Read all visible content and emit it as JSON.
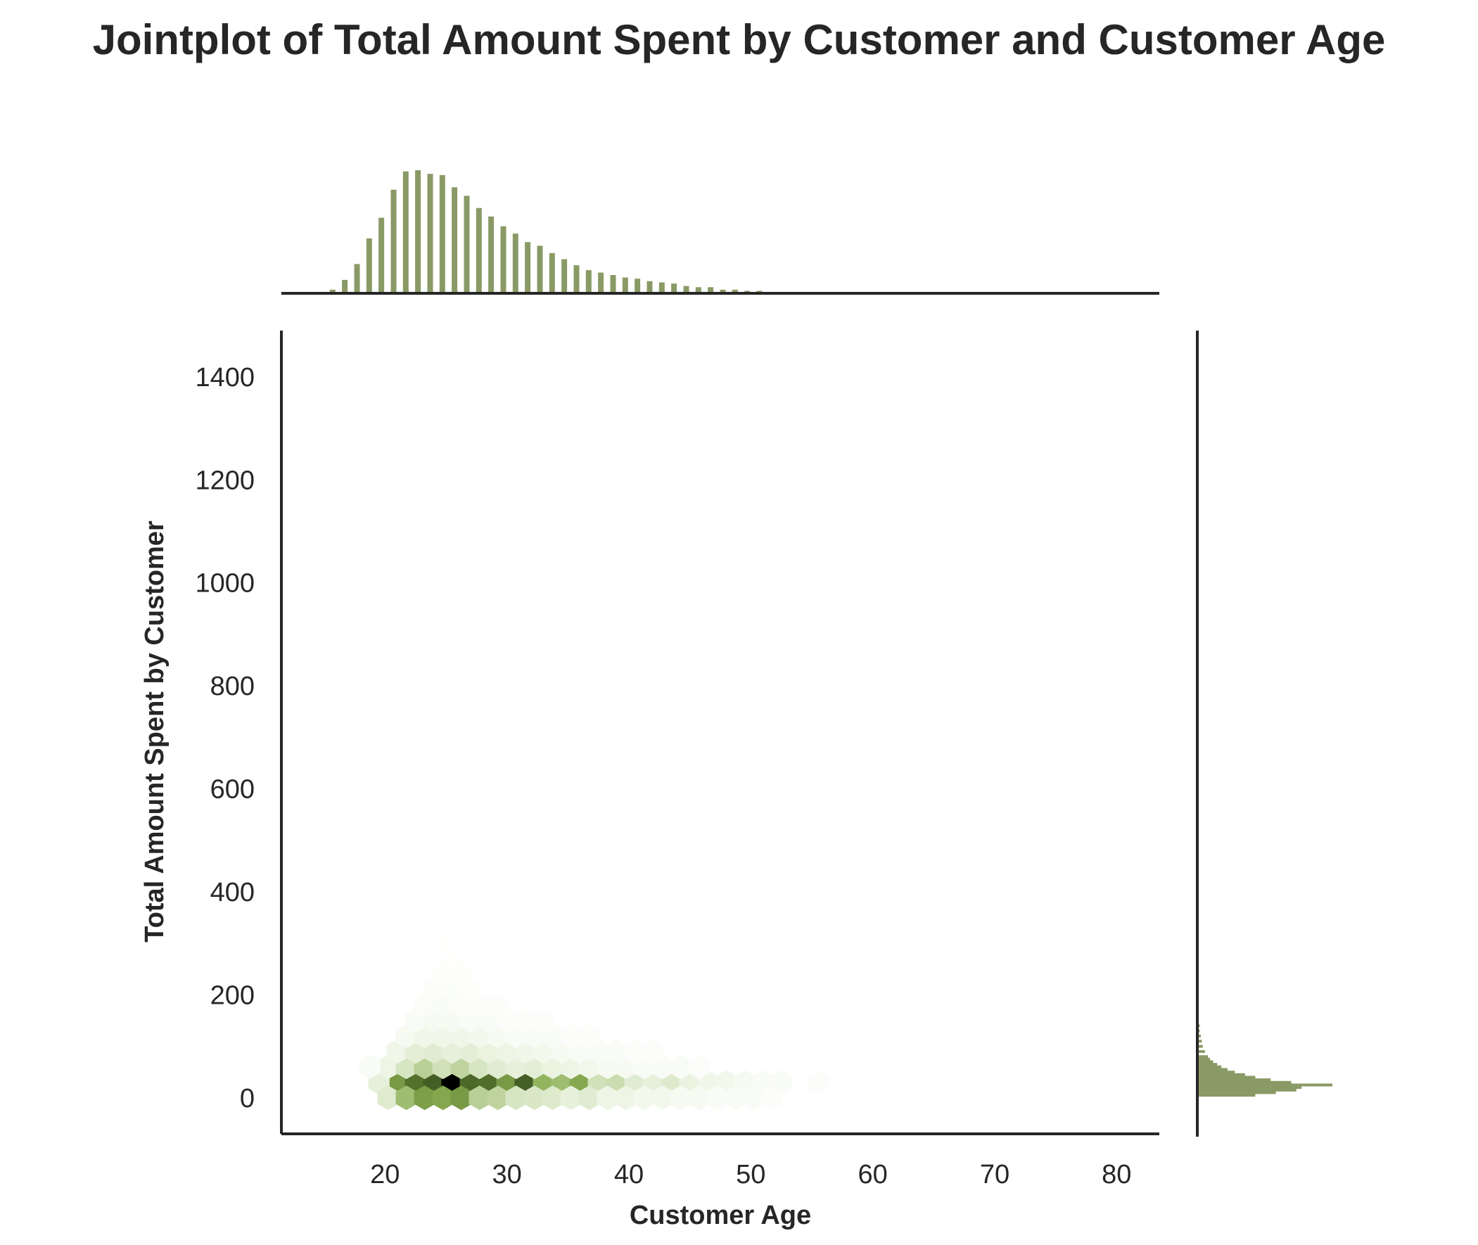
{
  "chart_data": {
    "type": "hexbin-jointplot",
    "title": "Jointplot of Total Amount Spent by Customer and Customer Age",
    "xlabel": "Customer Age",
    "ylabel": "Total Amount Spent by Customer",
    "xlim": [
      11.5,
      83.5
    ],
    "ylim": [
      -70,
      1490
    ],
    "xticks": [
      20,
      30,
      40,
      50,
      60,
      70,
      80
    ],
    "yticks": [
      0,
      200,
      400,
      600,
      800,
      1000,
      1200,
      1400
    ],
    "grid": false,
    "colors": {
      "bar": "#8a9a66",
      "hex_light": "#f4f8ee",
      "hex_mid": "#8aad52",
      "hex_dark": "#4a6624",
      "hex_max": "#000000",
      "axis": "#262626"
    },
    "hexbin_cells": [
      {
        "x": 21,
        "y": 30,
        "density": 0.55
      },
      {
        "x": 22.5,
        "y": 30,
        "density": 0.75
      },
      {
        "x": 24,
        "y": 30,
        "density": 0.82
      },
      {
        "x": 25.5,
        "y": 30,
        "density": 1.0
      },
      {
        "x": 27,
        "y": 30,
        "density": 0.78
      },
      {
        "x": 28.5,
        "y": 30,
        "density": 0.76
      },
      {
        "x": 30,
        "y": 30,
        "density": 0.55
      },
      {
        "x": 31.5,
        "y": 30,
        "density": 0.82
      },
      {
        "x": 33,
        "y": 30,
        "density": 0.42
      },
      {
        "x": 34.5,
        "y": 30,
        "density": 0.38
      },
      {
        "x": 36,
        "y": 30,
        "density": 0.48
      },
      {
        "x": 37.5,
        "y": 30,
        "density": 0.22
      },
      {
        "x": 39,
        "y": 30,
        "density": 0.24
      },
      {
        "x": 40.5,
        "y": 30,
        "density": 0.14
      },
      {
        "x": 42,
        "y": 30,
        "density": 0.1
      },
      {
        "x": 43.5,
        "y": 30,
        "density": 0.16
      },
      {
        "x": 45,
        "y": 30,
        "density": 0.08
      },
      {
        "x": 46.5,
        "y": 30,
        "density": 0.05
      },
      {
        "x": 48,
        "y": 30,
        "density": 0.04
      },
      {
        "x": 49.5,
        "y": 30,
        "density": 0.03
      },
      {
        "x": 51,
        "y": 30,
        "density": 0.02
      },
      {
        "x": 52.5,
        "y": 30,
        "density": 0.02
      },
      {
        "x": 55.5,
        "y": 30,
        "density": 0.01
      },
      {
        "x": 19.5,
        "y": 30,
        "density": 0.1
      },
      {
        "x": 20.25,
        "y": 0,
        "density": 0.15
      },
      {
        "x": 21.75,
        "y": 0,
        "density": 0.38
      },
      {
        "x": 23.25,
        "y": 0,
        "density": 0.52
      },
      {
        "x": 24.75,
        "y": 0,
        "density": 0.48
      },
      {
        "x": 26.25,
        "y": 0,
        "density": 0.55
      },
      {
        "x": 27.75,
        "y": 0,
        "density": 0.3
      },
      {
        "x": 29.25,
        "y": 0,
        "density": 0.28
      },
      {
        "x": 30.75,
        "y": 0,
        "density": 0.2
      },
      {
        "x": 32.25,
        "y": 0,
        "density": 0.18
      },
      {
        "x": 33.75,
        "y": 0,
        "density": 0.16
      },
      {
        "x": 35.25,
        "y": 0,
        "density": 0.1
      },
      {
        "x": 36.75,
        "y": 0,
        "density": 0.14
      },
      {
        "x": 38.25,
        "y": 0,
        "density": 0.06
      },
      {
        "x": 39.75,
        "y": 0,
        "density": 0.06
      },
      {
        "x": 41.25,
        "y": 0,
        "density": 0.04
      },
      {
        "x": 42.75,
        "y": 0,
        "density": 0.04
      },
      {
        "x": 44.25,
        "y": 0,
        "density": 0.03
      },
      {
        "x": 45.75,
        "y": 0,
        "density": 0.03
      },
      {
        "x": 47.25,
        "y": 0,
        "density": 0.02
      },
      {
        "x": 48.75,
        "y": 0,
        "density": 0.02
      },
      {
        "x": 50.25,
        "y": 0,
        "density": 0.02
      },
      {
        "x": 51.75,
        "y": 0,
        "density": 0.01
      },
      {
        "x": 20.25,
        "y": 60,
        "density": 0.06
      },
      {
        "x": 21.75,
        "y": 60,
        "density": 0.2
      },
      {
        "x": 23.25,
        "y": 60,
        "density": 0.3
      },
      {
        "x": 24.75,
        "y": 60,
        "density": 0.22
      },
      {
        "x": 26.25,
        "y": 60,
        "density": 0.28
      },
      {
        "x": 27.75,
        "y": 60,
        "density": 0.2
      },
      {
        "x": 29.25,
        "y": 60,
        "density": 0.14
      },
      {
        "x": 30.75,
        "y": 60,
        "density": 0.1
      },
      {
        "x": 32.25,
        "y": 60,
        "density": 0.12
      },
      {
        "x": 33.75,
        "y": 60,
        "density": 0.08
      },
      {
        "x": 35.25,
        "y": 60,
        "density": 0.06
      },
      {
        "x": 36.75,
        "y": 60,
        "density": 0.04
      },
      {
        "x": 38.25,
        "y": 60,
        "density": 0.03
      },
      {
        "x": 39.75,
        "y": 60,
        "density": 0.03
      },
      {
        "x": 41.25,
        "y": 60,
        "density": 0.02
      },
      {
        "x": 42.75,
        "y": 60,
        "density": 0.02
      },
      {
        "x": 44.25,
        "y": 60,
        "density": 0.02
      },
      {
        "x": 45.75,
        "y": 60,
        "density": 0.01
      },
      {
        "x": 18.75,
        "y": 60,
        "density": 0.02
      },
      {
        "x": 21,
        "y": 90,
        "density": 0.05
      },
      {
        "x": 22.5,
        "y": 90,
        "density": 0.12
      },
      {
        "x": 24,
        "y": 90,
        "density": 0.14
      },
      {
        "x": 25.5,
        "y": 90,
        "density": 0.1
      },
      {
        "x": 27,
        "y": 90,
        "density": 0.12
      },
      {
        "x": 28.5,
        "y": 90,
        "density": 0.08
      },
      {
        "x": 30,
        "y": 90,
        "density": 0.06
      },
      {
        "x": 31.5,
        "y": 90,
        "density": 0.05
      },
      {
        "x": 33,
        "y": 90,
        "density": 0.04
      },
      {
        "x": 34.5,
        "y": 90,
        "density": 0.03
      },
      {
        "x": 36,
        "y": 90,
        "density": 0.02
      },
      {
        "x": 37.5,
        "y": 90,
        "density": 0.02
      },
      {
        "x": 39,
        "y": 90,
        "density": 0.02
      },
      {
        "x": 40.5,
        "y": 90,
        "density": 0.01
      },
      {
        "x": 42,
        "y": 90,
        "density": 0.01
      },
      {
        "x": 21.75,
        "y": 120,
        "density": 0.03
      },
      {
        "x": 23.25,
        "y": 120,
        "density": 0.05
      },
      {
        "x": 24.75,
        "y": 120,
        "density": 0.05
      },
      {
        "x": 26.25,
        "y": 120,
        "density": 0.05
      },
      {
        "x": 27.75,
        "y": 120,
        "density": 0.04
      },
      {
        "x": 29.25,
        "y": 120,
        "density": 0.03
      },
      {
        "x": 30.75,
        "y": 120,
        "density": 0.02
      },
      {
        "x": 32.25,
        "y": 120,
        "density": 0.02
      },
      {
        "x": 33.75,
        "y": 120,
        "density": 0.02
      },
      {
        "x": 35.25,
        "y": 120,
        "density": 0.01
      },
      {
        "x": 36.75,
        "y": 120,
        "density": 0.01
      },
      {
        "x": 22.5,
        "y": 150,
        "density": 0.02
      },
      {
        "x": 24,
        "y": 150,
        "density": 0.03
      },
      {
        "x": 25.5,
        "y": 150,
        "density": 0.03
      },
      {
        "x": 27,
        "y": 150,
        "density": 0.02
      },
      {
        "x": 28.5,
        "y": 150,
        "density": 0.02
      },
      {
        "x": 30,
        "y": 150,
        "density": 0.01
      },
      {
        "x": 31.5,
        "y": 150,
        "density": 0.01
      },
      {
        "x": 33,
        "y": 150,
        "density": 0.01
      },
      {
        "x": 23.25,
        "y": 180,
        "density": 0.015
      },
      {
        "x": 24.75,
        "y": 180,
        "density": 0.02
      },
      {
        "x": 26.25,
        "y": 180,
        "density": 0.015
      },
      {
        "x": 27.75,
        "y": 180,
        "density": 0.01
      },
      {
        "x": 29.25,
        "y": 180,
        "density": 0.01
      },
      {
        "x": 24,
        "y": 210,
        "density": 0.01
      },
      {
        "x": 25.5,
        "y": 210,
        "density": 0.012
      },
      {
        "x": 27,
        "y": 210,
        "density": 0.008
      },
      {
        "x": 24.75,
        "y": 240,
        "density": 0.008
      },
      {
        "x": 26.25,
        "y": 240,
        "density": 0.006
      },
      {
        "x": 25.5,
        "y": 270,
        "density": 0.005
      },
      {
        "x": 24.75,
        "y": 300,
        "density": 0.004
      }
    ],
    "top_marginal": {
      "bin_centers": [
        15.7,
        16.7,
        17.7,
        18.7,
        19.7,
        20.7,
        21.7,
        22.7,
        23.7,
        24.7,
        25.7,
        26.7,
        27.7,
        28.7,
        29.7,
        30.7,
        31.7,
        32.7,
        33.7,
        34.7,
        35.7,
        36.7,
        37.7,
        38.7,
        39.7,
        40.7,
        41.7,
        42.7,
        43.7,
        44.7,
        45.7,
        46.7,
        47.7,
        48.7,
        49.7,
        50.7,
        51.7,
        52.7
      ],
      "counts": [
        3,
        11,
        24,
        45,
        62,
        85,
        100,
        101,
        98,
        97,
        87,
        80,
        70,
        63,
        55,
        49,
        42,
        39,
        33,
        28,
        23,
        19,
        17,
        15,
        13,
        12,
        10,
        9,
        8,
        6,
        5,
        5,
        3,
        3,
        2,
        2,
        1,
        1
      ]
    },
    "right_marginal": {
      "bin_centers": [
        5,
        10,
        15,
        20,
        25,
        30,
        35,
        40,
        45,
        50,
        55,
        60,
        65,
        70,
        75,
        80,
        90,
        100,
        110,
        120,
        130,
        140
      ],
      "counts": [
        55,
        75,
        95,
        100,
        130,
        90,
        70,
        55,
        45,
        35,
        28,
        22,
        18,
        14,
        11,
        9,
        6,
        4,
        3,
        2,
        1,
        1
      ]
    }
  }
}
